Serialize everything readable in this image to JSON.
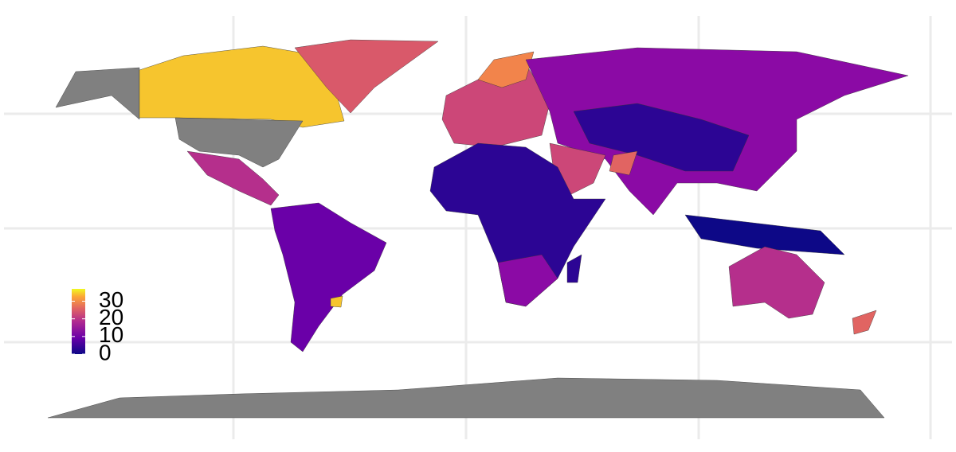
{
  "legend": {
    "ticks": [
      0,
      10,
      20,
      30
    ],
    "lim": [
      0,
      37
    ]
  }
}
